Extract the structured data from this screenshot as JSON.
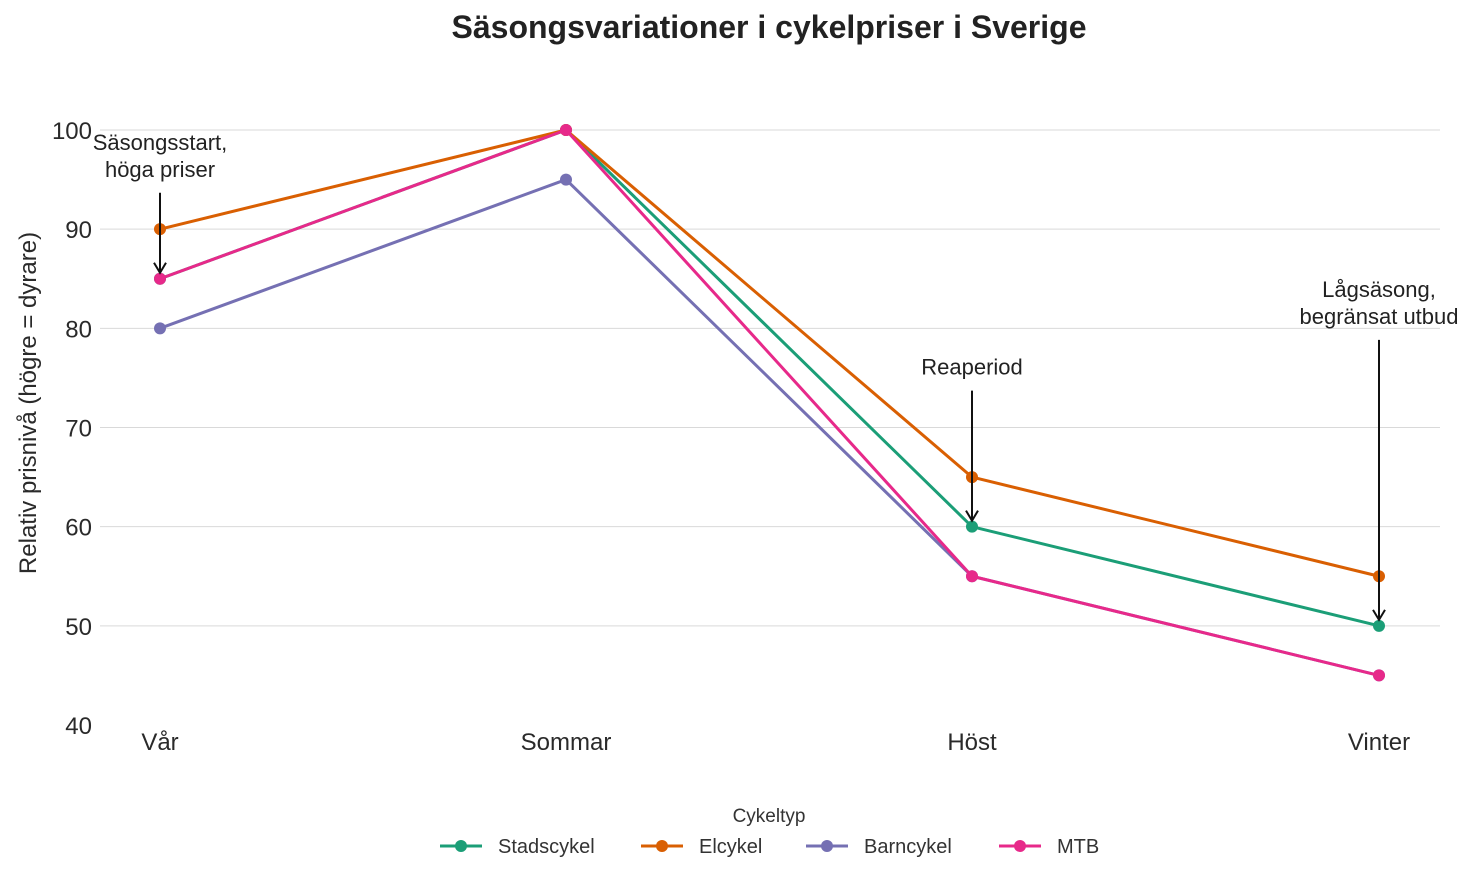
{
  "chart_data": {
    "type": "line",
    "title": "Säsongsvariationer i cykelpriser i Sverige",
    "xlabel": "",
    "ylabel": "Relativ prisnivå (högre = dyrare)",
    "categories": [
      "Vår",
      "Sommar",
      "Höst",
      "Vinter"
    ],
    "ylim": [
      40,
      100
    ],
    "yticks": [
      40,
      50,
      60,
      70,
      80,
      90,
      100
    ],
    "grid": true,
    "legend": {
      "title": "Cykeltyp",
      "position": "bottom"
    },
    "series": [
      {
        "name": "Stadscykel",
        "color": "#1b9e77",
        "values": [
          85,
          100,
          60,
          50
        ]
      },
      {
        "name": "Elcykel",
        "color": "#d95f02",
        "values": [
          90,
          100,
          65,
          55
        ]
      },
      {
        "name": "Barncykel",
        "color": "#7570b3",
        "values": [
          80,
          95,
          55,
          45
        ]
      },
      {
        "name": "MTB",
        "color": "#e7298a",
        "values": [
          85,
          100,
          55,
          45
        ]
      }
    ],
    "annotations": [
      {
        "lines": [
          "Säsongsstart,",
          "höga priser"
        ],
        "category": "Vår",
        "y": 85
      },
      {
        "lines": [
          "Reaperiod"
        ],
        "category": "Höst",
        "y": 60
      },
      {
        "lines": [
          "Lågsäsong,",
          "begränsat utbud"
        ],
        "category": "Vinter",
        "y": 50
      }
    ]
  }
}
